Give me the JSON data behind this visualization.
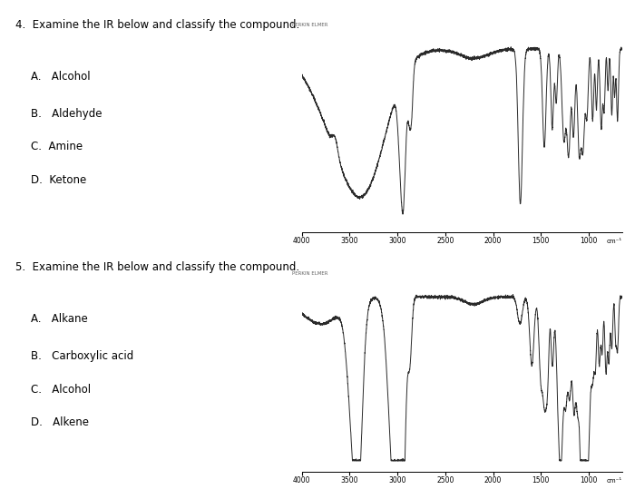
{
  "title1": "4.  Examine the IR below and classify the compound.",
  "options1": [
    "A.   Alcohol",
    "B.   Aldehyde",
    "C.  Amine",
    "D.  Ketone"
  ],
  "title2": "5.  Examine the IR below and classify the compound.",
  "options2": [
    "A.   Alkane",
    "B.   Carboxylic acid",
    "C.   Alcohol",
    "D.   Alkene"
  ],
  "brand1": "PERKIN ELMER",
  "brand2": "PERKIN ELMER",
  "bg_color": "#ffffff",
  "line_color": "#2a2a2a",
  "font_size_title": 8.5,
  "font_size_options": 8.5
}
